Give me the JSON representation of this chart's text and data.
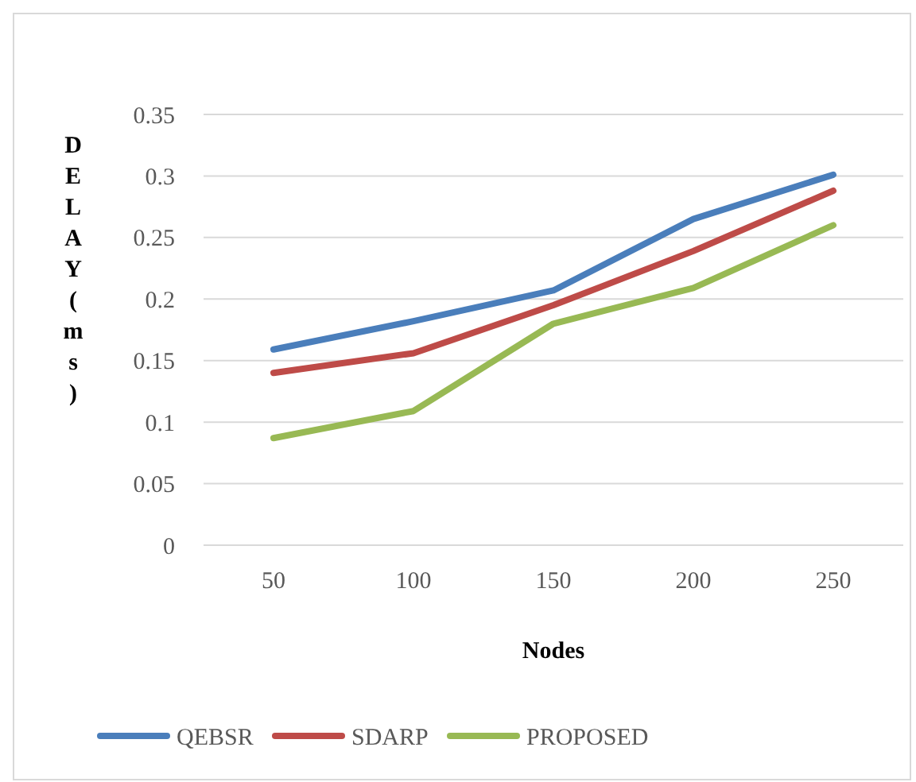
{
  "chart_data": {
    "type": "line",
    "xlabel": "Nodes",
    "ylabel": "DELAY(ms)",
    "categories": [
      "50",
      "100",
      "150",
      "200",
      "250"
    ],
    "series": [
      {
        "name": "QEBSR",
        "color": "#4a7ebb",
        "values": [
          0.159,
          0.182,
          0.207,
          0.265,
          0.301
        ]
      },
      {
        "name": "SDARP",
        "color": "#be4b48",
        "values": [
          0.14,
          0.156,
          0.195,
          0.239,
          0.288
        ]
      },
      {
        "name": "PROPOSED",
        "color": "#98b954",
        "values": [
          0.087,
          0.109,
          0.18,
          0.209,
          0.26
        ]
      }
    ],
    "ylim": [
      0,
      0.35
    ],
    "yticks": [
      0,
      0.05,
      0.1,
      0.15,
      0.2,
      0.25,
      0.3,
      0.35
    ],
    "grid": "y",
    "legend": "bottom",
    "marker": "none",
    "line_style": "solid"
  }
}
